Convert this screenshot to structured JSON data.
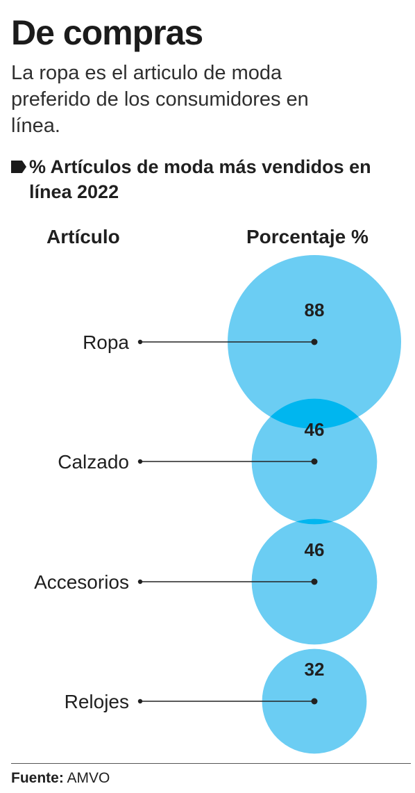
{
  "header": {
    "title": "De compras",
    "subtitle": "La ropa es el articulo de moda preferido de los consumidores en línea."
  },
  "legend": {
    "text": "% Artículos de moda más vendidos en línea 2022"
  },
  "footer": {
    "source_label": "Fuente:",
    "source_value": "AMVO"
  },
  "colors": {
    "bubble": "#6bcdf3",
    "bubble_overlap": "#00b6ef",
    "text": "#1f1f1f"
  },
  "chart_data": {
    "type": "bubble",
    "column_headers": {
      "category": "Artículo",
      "value": "Porcentaje %"
    },
    "categories": [
      "Ropa",
      "Calzado",
      "Accesorios",
      "Relojes"
    ],
    "values": [
      88,
      46,
      46,
      32
    ],
    "unit": "%"
  }
}
